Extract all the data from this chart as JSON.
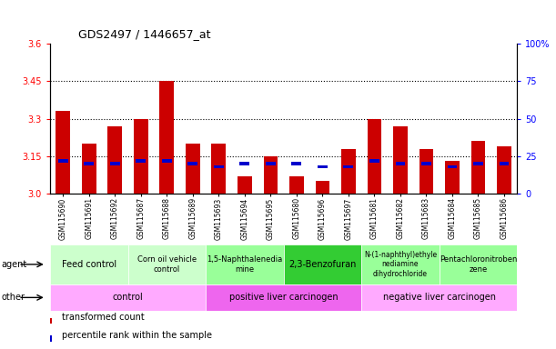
{
  "title": "GDS2497 / 1446657_at",
  "samples": [
    "GSM115690",
    "GSM115691",
    "GSM115692",
    "GSM115687",
    "GSM115688",
    "GSM115689",
    "GSM115693",
    "GSM115694",
    "GSM115695",
    "GSM115680",
    "GSM115696",
    "GSM115697",
    "GSM115681",
    "GSM115682",
    "GSM115683",
    "GSM115684",
    "GSM115685",
    "GSM115686"
  ],
  "transformed_count": [
    3.33,
    3.2,
    3.27,
    3.3,
    3.45,
    3.2,
    3.2,
    3.07,
    3.15,
    3.07,
    3.05,
    3.18,
    3.3,
    3.27,
    3.18,
    3.13,
    3.21,
    3.19
  ],
  "percentile_rank": [
    22,
    20,
    20,
    22,
    22,
    20,
    18,
    20,
    20,
    20,
    18,
    18,
    22,
    20,
    20,
    18,
    20,
    20
  ],
  "ylim_left": [
    3.0,
    3.6
  ],
  "ylim_right": [
    0,
    100
  ],
  "yticks_left": [
    3.0,
    3.15,
    3.3,
    3.45,
    3.6
  ],
  "yticks_right": [
    0,
    25,
    50,
    75,
    100
  ],
  "hlines": [
    3.15,
    3.3,
    3.45
  ],
  "bar_color": "#cc0000",
  "blue_color": "#0000cc",
  "bg_color": "#ffffff",
  "agent_groups": [
    {
      "label": "Feed control",
      "start": 0,
      "end": 3,
      "color": "#ccffcc",
      "fontsize": 7
    },
    {
      "label": "Corn oil vehicle\ncontrol",
      "start": 3,
      "end": 6,
      "color": "#ccffcc",
      "fontsize": 6
    },
    {
      "label": "1,5-Naphthalenedia\nmine",
      "start": 6,
      "end": 9,
      "color": "#99ff99",
      "fontsize": 6
    },
    {
      "label": "2,3-Benzofuran",
      "start": 9,
      "end": 12,
      "color": "#33cc33",
      "fontsize": 7
    },
    {
      "label": "N-(1-naphthyl)ethyle\nnediamine\ndihydrochloride",
      "start": 12,
      "end": 15,
      "color": "#99ff99",
      "fontsize": 5.5
    },
    {
      "label": "Pentachloronitroben\nzene",
      "start": 15,
      "end": 18,
      "color": "#99ff99",
      "fontsize": 6
    }
  ],
  "other_groups": [
    {
      "label": "control",
      "start": 0,
      "end": 6,
      "color": "#ffaaff"
    },
    {
      "label": "positive liver carcinogen",
      "start": 6,
      "end": 12,
      "color": "#ee66ee"
    },
    {
      "label": "negative liver carcinogen",
      "start": 12,
      "end": 18,
      "color": "#ffaaff"
    }
  ],
  "legend_items": [
    {
      "label": "transformed count",
      "color": "#cc0000"
    },
    {
      "label": "percentile rank within the sample",
      "color": "#0000cc"
    }
  ]
}
